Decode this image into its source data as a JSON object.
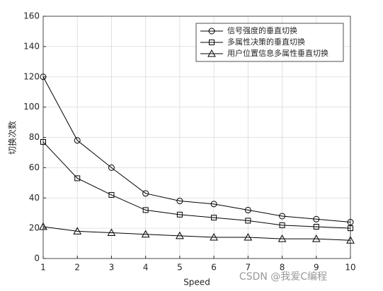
{
  "chart_data": {
    "type": "line",
    "x": [
      1,
      2,
      3,
      4,
      5,
      6,
      7,
      8,
      9,
      10
    ],
    "series": [
      {
        "name": "信号强度的垂直切换",
        "color": "#000000",
        "marker": "circle",
        "values": [
          120,
          78,
          60,
          43,
          38,
          36,
          32,
          28,
          26,
          24
        ]
      },
      {
        "name": "多属性决策的垂直切换",
        "color": "#000000",
        "marker": "square",
        "values": [
          77,
          53,
          42,
          32,
          29,
          27,
          25,
          22,
          21,
          20
        ]
      },
      {
        "name": "用户位置信息多属性垂直切换",
        "color": "#000000",
        "marker": "triangle",
        "values": [
          21,
          18,
          17,
          16,
          15,
          14,
          14,
          13,
          13,
          12
        ]
      }
    ],
    "x_label": "Speed",
    "y_label": "切换次数",
    "xlim": [
      1,
      10
    ],
    "xticks": [
      1,
      2,
      3,
      4,
      5,
      6,
      7,
      8,
      9,
      10
    ],
    "ylim": [
      0,
      160
    ],
    "yticks": [
      0,
      20,
      40,
      60,
      80,
      100,
      120,
      140,
      160
    ],
    "grid": true,
    "legend": "upper right",
    "watermark": "CSDN @我爱C编程"
  }
}
